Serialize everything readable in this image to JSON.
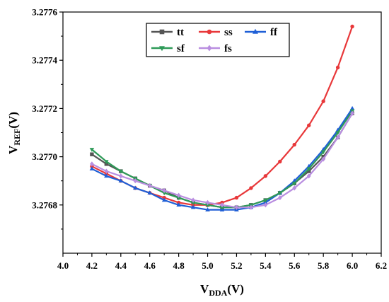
{
  "chart_data": {
    "type": "line",
    "xlabel": {
      "main": "V",
      "sub": "DDA",
      "unit": "(V)"
    },
    "ylabel": {
      "main": "V",
      "sub": "REF",
      "unit": "(V)"
    },
    "xlim": [
      4.0,
      6.2
    ],
    "ylim": [
      3.2766,
      3.2776
    ],
    "x_ticks": [
      {
        "value": 4.0,
        "label": "4.0"
      },
      {
        "value": 4.2,
        "label": "4.2"
      },
      {
        "value": 4.4,
        "label": "4.4"
      },
      {
        "value": 4.6,
        "label": "4.6"
      },
      {
        "value": 4.8,
        "label": "4.8"
      },
      {
        "value": 5.0,
        "label": "5.0"
      },
      {
        "value": 5.2,
        "label": "5.2"
      },
      {
        "value": 5.4,
        "label": "5.4"
      },
      {
        "value": 5.6,
        "label": "5.6"
      },
      {
        "value": 5.8,
        "label": "5.8"
      },
      {
        "value": 6.0,
        "label": "6.0"
      },
      {
        "value": 6.2,
        "label": "6.2"
      }
    ],
    "y_ticks": [
      {
        "value": 3.2768,
        "label": "3.2768"
      },
      {
        "value": 3.277,
        "label": "3.2770"
      },
      {
        "value": 3.2772,
        "label": "3.2772"
      },
      {
        "value": 3.2774,
        "label": "3.2774"
      },
      {
        "value": 3.2776,
        "label": "3.2776"
      }
    ],
    "grid": false,
    "legend_position": "top-center",
    "x": [
      4.2,
      4.3,
      4.4,
      4.5,
      4.6,
      4.7,
      4.8,
      4.9,
      5.0,
      5.1,
      5.2,
      5.3,
      5.4,
      5.5,
      5.6,
      5.7,
      5.8,
      5.9,
      6.0
    ],
    "series": [
      {
        "name": "tt",
        "color": "#555555",
        "marker": "square",
        "values": [
          3.27701,
          3.27697,
          3.27694,
          3.27691,
          3.27688,
          3.27686,
          3.27683,
          3.27681,
          3.2768,
          3.27679,
          3.27679,
          3.2768,
          3.27682,
          3.27685,
          3.27689,
          3.27694,
          3.277,
          3.27708,
          3.27718
        ]
      },
      {
        "name": "ss",
        "color": "#e8383a",
        "marker": "circle",
        "values": [
          3.27696,
          3.27693,
          3.2769,
          3.27687,
          3.27685,
          3.27683,
          3.27681,
          3.2768,
          3.2768,
          3.27681,
          3.27683,
          3.27687,
          3.27692,
          3.27698,
          3.27705,
          3.27713,
          3.27723,
          3.27737,
          3.27754
        ]
      },
      {
        "name": "ff",
        "color": "#1f5fd6",
        "marker": "triangle-up",
        "values": [
          3.27695,
          3.27692,
          3.2769,
          3.27687,
          3.27685,
          3.27682,
          3.2768,
          3.27679,
          3.27678,
          3.27678,
          3.27678,
          3.27679,
          3.27681,
          3.27685,
          3.2769,
          3.27696,
          3.27703,
          3.27711,
          3.2772
        ]
      },
      {
        "name": "sf",
        "color": "#2e9a58",
        "marker": "triangle-down",
        "values": [
          3.27703,
          3.27698,
          3.27694,
          3.27691,
          3.27688,
          3.27685,
          3.27683,
          3.27681,
          3.2768,
          3.27679,
          3.27679,
          3.2768,
          3.27682,
          3.27685,
          3.27689,
          3.27695,
          3.27702,
          3.2771,
          3.27719
        ]
      },
      {
        "name": "fs",
        "color": "#b98ee0",
        "marker": "diamond",
        "values": [
          3.27697,
          3.27694,
          3.27692,
          3.2769,
          3.27688,
          3.27686,
          3.27684,
          3.27682,
          3.27681,
          3.2768,
          3.27679,
          3.27679,
          3.2768,
          3.27683,
          3.27687,
          3.27692,
          3.27699,
          3.27708,
          3.27718
        ]
      }
    ]
  }
}
